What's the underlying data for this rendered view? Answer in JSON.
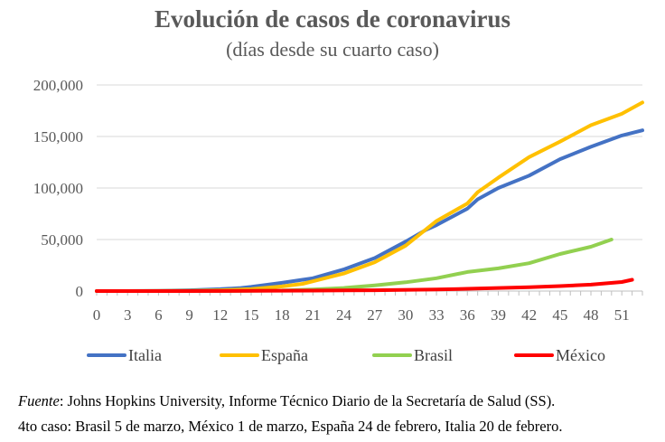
{
  "chart_data": {
    "type": "line",
    "title": "Evolución de casos de coronavirus",
    "subtitle": "(días desde su cuarto caso)",
    "xlabel": "",
    "ylabel": "",
    "xlim": [
      0,
      53
    ],
    "ylim": [
      0,
      200000
    ],
    "x_tick_labels": [
      "0",
      "3",
      "6",
      "9",
      "12",
      "15",
      "18",
      "21",
      "24",
      "27",
      "30",
      "33",
      "36",
      "39",
      "42",
      "45",
      "48",
      "51"
    ],
    "x_tick_values": [
      0,
      3,
      6,
      9,
      12,
      15,
      18,
      21,
      24,
      27,
      30,
      33,
      36,
      39,
      42,
      45,
      48,
      51
    ],
    "y_tick_labels": [
      "0",
      "50,000",
      "100,000",
      "150,000",
      "200,000"
    ],
    "y_tick_values": [
      0,
      50000,
      100000,
      150000,
      200000
    ],
    "grid": "horizontal",
    "legend_position": "bottom",
    "series": [
      {
        "name": "Italia",
        "color": "#4472C4",
        "x": [
          0,
          3,
          6,
          9,
          12,
          14,
          15,
          18,
          20,
          21,
          24,
          27,
          30,
          32,
          33,
          36,
          37,
          39,
          42,
          45,
          48,
          51,
          53
        ],
        "values": [
          0,
          0,
          200,
          800,
          1800,
          3000,
          4000,
          8000,
          11000,
          12500,
          21000,
          32000,
          48000,
          59500,
          64000,
          80000,
          89000,
          100000,
          112000,
          128000,
          140000,
          151000,
          156000
        ]
      },
      {
        "name": "España",
        "color": "#FFC000",
        "x": [
          0,
          3,
          6,
          9,
          12,
          15,
          18,
          20,
          21,
          24,
          27,
          30,
          32,
          33,
          36,
          37,
          39,
          42,
          45,
          48,
          51,
          53
        ],
        "values": [
          0,
          0,
          100,
          300,
          800,
          1800,
          4500,
          7000,
          9500,
          17000,
          28000,
          44000,
          60000,
          68000,
          85000,
          96000,
          110000,
          130000,
          145000,
          161000,
          172000,
          183000
        ]
      },
      {
        "name": "Brasil",
        "color": "#92D050",
        "x": [
          0,
          6,
          12,
          18,
          21,
          24,
          27,
          30,
          33,
          36,
          39,
          42,
          45,
          48,
          50
        ],
        "values": [
          0,
          0,
          100,
          500,
          1500,
          3000,
          5500,
          8500,
          12500,
          18500,
          22000,
          27000,
          36000,
          43000,
          50000
        ]
      },
      {
        "name": "México",
        "color": "#FF0000",
        "x": [
          0,
          9,
          15,
          21,
          27,
          33,
          36,
          39,
          42,
          45,
          48,
          51,
          52
        ],
        "values": [
          0,
          0,
          200,
          400,
          800,
          1500,
          2200,
          3000,
          3800,
          4800,
          6200,
          8800,
          11000
        ]
      }
    ]
  },
  "footnotes": {
    "source_label": "Fuente",
    "source_text": ": Johns Hopkins University, Informe Técnico Diario de la Secretaría de Salud (SS).",
    "dates_text": "4to caso: Brasil 5 de marzo, México 1 de marzo, España 24 de febrero, Italia 20 de febrero."
  }
}
